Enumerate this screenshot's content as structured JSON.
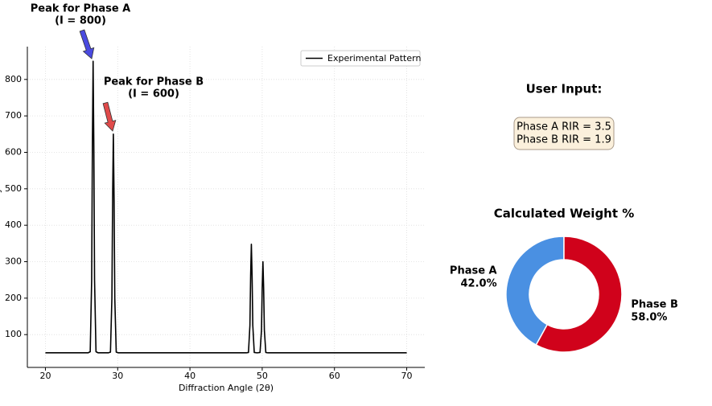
{
  "chart_data": [
    {
      "type": "line",
      "xlabel": "Diffraction Angle (2θ)",
      "ylabel": "Intensity",
      "x": [
        20,
        25.9,
        26.2,
        26.4,
        26.5,
        26.6,
        26.7,
        26.8,
        27.0,
        27.3,
        28.7,
        29.0,
        29.2,
        29.3,
        29.4,
        29.5,
        29.6,
        29.8,
        30.1,
        47.8,
        48.1,
        48.3,
        48.4,
        48.5,
        48.6,
        48.7,
        48.9,
        49.3,
        49.7,
        49.9,
        50.0,
        50.1,
        50.2,
        50.3,
        50.5,
        50.8,
        70
      ],
      "series": [
        {
          "name": "Experimental Pattern",
          "color": "#000000",
          "values": [
            50,
            50,
            53,
            250,
            616,
            850,
            616,
            250,
            53,
            50,
            50,
            52,
            200,
            474,
            650,
            474,
            200,
            52,
            50,
            50,
            51,
            125,
            261,
            348,
            261,
            125,
            51,
            50,
            51,
            112,
            227,
            300,
            227,
            112,
            51,
            50,
            50
          ]
        }
      ],
      "xlim": [
        17.5,
        72.5
      ],
      "ylim": [
        10,
        890
      ],
      "xticks": [
        20,
        30,
        40,
        50,
        60,
        70
      ],
      "yticks": [
        100,
        200,
        300,
        400,
        500,
        600,
        700,
        800
      ],
      "grid": true,
      "legend": "upper right",
      "annotations": [
        {
          "text": [
            "Peak for Phase A",
            "(I = 800)"
          ],
          "color": "#0000cc"
        },
        {
          "text": [
            "Peak for Phase B",
            "(I = 600)"
          ],
          "color": "#ee1111"
        }
      ]
    },
    {
      "type": "pie",
      "donut": true,
      "title": "Calculated Weight %",
      "categories": [
        "Phase A",
        "Phase B"
      ],
      "values": [
        42.0,
        58.0
      ],
      "value_labels": [
        "42.0%",
        "58.0%"
      ],
      "colors": [
        "#4a90e2",
        "#d0021b"
      ]
    }
  ],
  "user_input": {
    "title": "User Input:",
    "lines": [
      "Phase A RIR = 3.5",
      "Phase B RIR = 1.9"
    ]
  }
}
